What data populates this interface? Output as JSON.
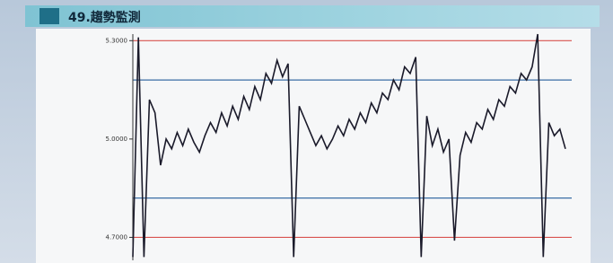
{
  "chart_data": {
    "type": "line",
    "title": "49.趨勢監測",
    "values": [
      4.64,
      5.31,
      4.64,
      5.12,
      5.08,
      4.92,
      5.0,
      4.97,
      5.02,
      4.98,
      5.03,
      4.99,
      4.96,
      5.01,
      5.05,
      5.02,
      5.08,
      5.04,
      5.1,
      5.06,
      5.13,
      5.09,
      5.16,
      5.12,
      5.2,
      5.17,
      5.24,
      5.19,
      5.23,
      4.64,
      5.1,
      5.06,
      5.02,
      4.98,
      5.01,
      4.97,
      5.0,
      5.04,
      5.01,
      5.06,
      5.03,
      5.08,
      5.05,
      5.11,
      5.08,
      5.14,
      5.12,
      5.18,
      5.15,
      5.22,
      5.2,
      5.25,
      4.64,
      5.07,
      4.98,
      5.03,
      4.96,
      5.0,
      4.69,
      4.95,
      5.02,
      4.99,
      5.05,
      5.03,
      5.09,
      5.06,
      5.12,
      5.1,
      5.16,
      5.14,
      5.2,
      5.18,
      5.22,
      5.32,
      4.64,
      5.05,
      5.01,
      5.03,
      4.97
    ],
    "color": "#1a1a2a",
    "ylim": [
      4.63,
      5.32
    ],
    "yticks": [
      {
        "value": 5.3,
        "label": "5.3000"
      },
      {
        "value": 5.0,
        "label": "5.0000"
      },
      {
        "value": 4.7,
        "label": "4.7000"
      }
    ],
    "control_lines": [
      {
        "value": 5.3,
        "color": "#d9534f"
      },
      {
        "value": 5.18,
        "color": "#3a6ea5"
      },
      {
        "value": 4.82,
        "color": "#3a6ea5"
      },
      {
        "value": 4.7,
        "color": "#d9534f"
      }
    ]
  }
}
